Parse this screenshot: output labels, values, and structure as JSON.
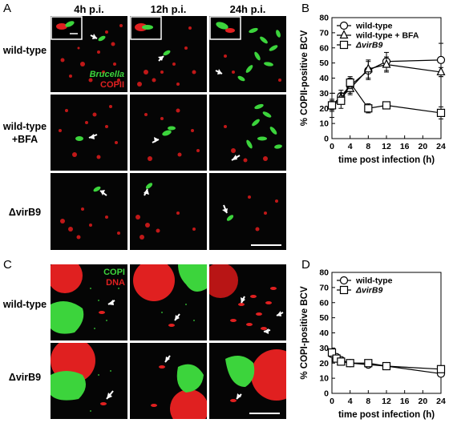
{
  "panel_labels": {
    "a": "A",
    "b": "B",
    "c": "C",
    "d": "D"
  },
  "micro_a": {
    "columns": [
      "4h p.i.",
      "12h p.i.",
      "24h p.i."
    ],
    "rows": [
      {
        "line1": "wild-type",
        "line2": ""
      },
      {
        "line1": "wild-type",
        "line2": "+BFA"
      },
      {
        "line1": "ΔvirB9",
        "line2": ""
      }
    ],
    "legend": {
      "line1": "Brucella",
      "line2": "COPII"
    }
  },
  "micro_c": {
    "rows": [
      {
        "line1": "wild-type",
        "line2": ""
      },
      {
        "line1": "ΔvirB9",
        "line2": ""
      }
    ],
    "legend": {
      "line1": "COPI",
      "line2": "DNA"
    }
  },
  "colors": {
    "brucella": "#3cd43c",
    "copii": "#e02020",
    "background": "#050505"
  },
  "chart_data": [
    {
      "type": "line",
      "panel": "B",
      "xlabel": "time post infection (h)",
      "ylabel": "% COPII-positive BCV",
      "xlim": [
        0,
        24
      ],
      "ylim": [
        0,
        80
      ],
      "xticks": [
        0,
        4,
        8,
        12,
        16,
        20,
        24
      ],
      "yticks": [
        0,
        10,
        20,
        30,
        40,
        50,
        60,
        70,
        80
      ],
      "legend_position": "top-left",
      "series": [
        {
          "name": "wild-type",
          "marker": "circle",
          "x": [
            0,
            2,
            4,
            8,
            12,
            24
          ],
          "y": [
            22,
            28,
            35,
            45,
            51,
            52
          ],
          "err": [
            4,
            4,
            5,
            6,
            6,
            11
          ]
        },
        {
          "name": "wild-type + BFA",
          "marker": "triangle",
          "x": [
            0,
            2,
            4,
            8,
            12,
            24
          ],
          "y": [
            22,
            27,
            33,
            46,
            49,
            44
          ],
          "err": [
            3,
            3,
            4,
            6,
            5,
            3
          ]
        },
        {
          "name": "ΔvirB9",
          "marker": "square",
          "x": [
            0,
            2,
            4,
            8,
            12,
            24
          ],
          "y": [
            22,
            25,
            37,
            20,
            22,
            17
          ],
          "err": [
            8,
            5,
            4,
            3,
            2,
            4
          ]
        }
      ]
    },
    {
      "type": "line",
      "panel": "D",
      "xlabel": "time post infection (h)",
      "ylabel": "% COPI-positive BCV",
      "xlim": [
        0,
        24
      ],
      "ylim": [
        0,
        80
      ],
      "xticks": [
        0,
        4,
        8,
        12,
        16,
        20,
        24
      ],
      "yticks": [
        0,
        10,
        20,
        30,
        40,
        50,
        60,
        70,
        80
      ],
      "legend_position": "top-left",
      "series": [
        {
          "name": "wild-type",
          "marker": "circle",
          "x": [
            0,
            1,
            2,
            4,
            8,
            12,
            24
          ],
          "y": [
            26,
            24,
            22,
            20,
            19,
            18,
            13
          ],
          "err": [
            1,
            1,
            1,
            1,
            1,
            1,
            1
          ]
        },
        {
          "name": "ΔvirB9",
          "marker": "square",
          "x": [
            0,
            1,
            2,
            4,
            8,
            12,
            24
          ],
          "y": [
            27,
            23,
            21,
            20,
            20,
            18,
            16
          ],
          "err": [
            2,
            2,
            1,
            1,
            1,
            2,
            1
          ]
        }
      ]
    }
  ]
}
